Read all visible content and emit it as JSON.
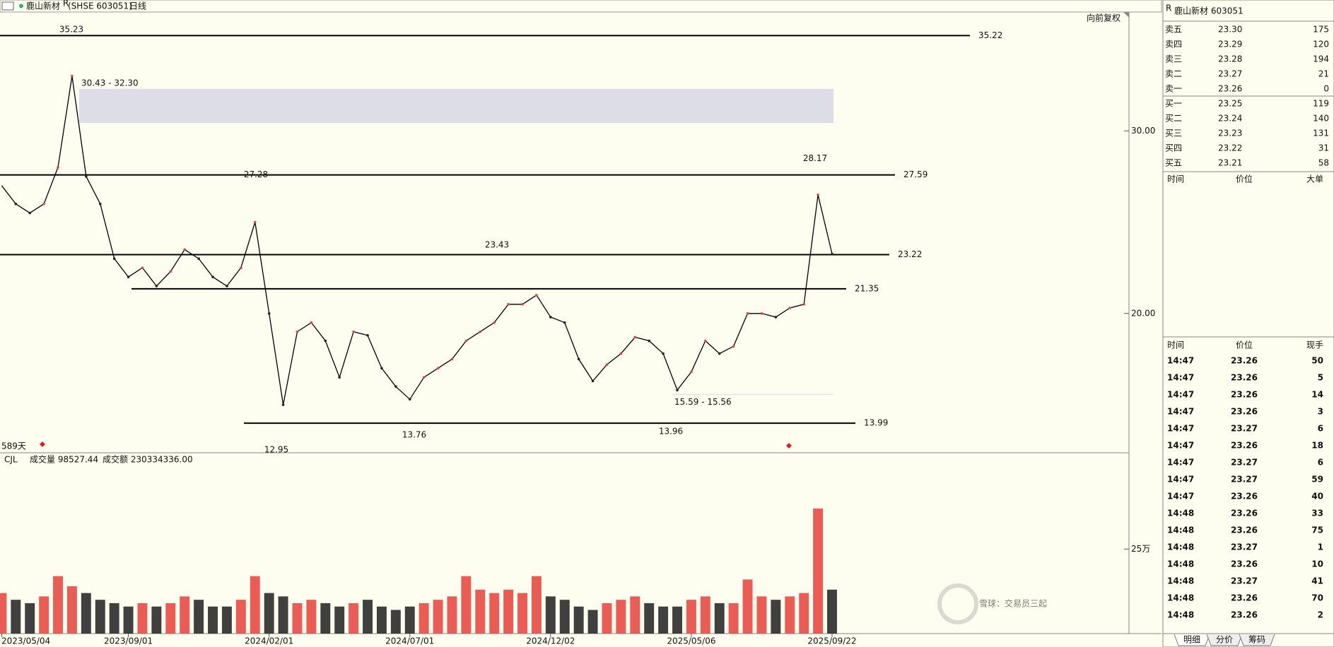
{
  "header": {
    "name": "鹿山新材",
    "mark": "R",
    "code": "(SHSE 603051)",
    "period": "日线",
    "adjust": "向前复权"
  },
  "chart_data": [
    {
      "type": "line",
      "color": "#000000",
      "categories": [
        "2023/05/04",
        null,
        null,
        null,
        null,
        null,
        null,
        null,
        null,
        "2023/09/01",
        null,
        null,
        null,
        null,
        null,
        null,
        null,
        null,
        null,
        "2024/02/01",
        null,
        null,
        null,
        null,
        null,
        null,
        null,
        null,
        null,
        "2024/07/01",
        null,
        null,
        null,
        null,
        null,
        null,
        null,
        null,
        null,
        "2024/12/02",
        null,
        null,
        null,
        null,
        null,
        null,
        null,
        null,
        null,
        "2025/05/06",
        null,
        null,
        null,
        null,
        null,
        null,
        null,
        null,
        null,
        "2025/09/22"
      ],
      "values": [
        27,
        26,
        25.5,
        26,
        28,
        33,
        27.5,
        26,
        23,
        22,
        22.5,
        21.5,
        22.3,
        23.5,
        23,
        22,
        21.5,
        22.5,
        25,
        20,
        15,
        19,
        19.5,
        18.5,
        16.5,
        19,
        18.8,
        17,
        16,
        15.3,
        16.5,
        17,
        17.5,
        18.5,
        19,
        19.5,
        20.5,
        20.5,
        21,
        19.8,
        19.5,
        17.5,
        16.3,
        17.2,
        17.8,
        18.7,
        18.5,
        17.8,
        15.8,
        16.8,
        18.5,
        17.8,
        18.2,
        20,
        20,
        19.8,
        20.3,
        20.5,
        26.5,
        23.26
      ],
      "ylim": [
        12.37,
        36.51
      ],
      "yticks": [
        {
          "value": 20,
          "label": "20.00"
        },
        {
          "value": 30,
          "label": "30.00"
        }
      ],
      "levels": [
        35.22,
        27.59,
        23.22,
        21.35,
        13.99
      ],
      "zones": [
        {
          "from": 30.43,
          "to": 32.3,
          "label": "30.43 - 32.30"
        },
        {
          "from": 15.59,
          "to": 15.56,
          "label": "15.59 - 15.56"
        }
      ],
      "highs": [
        35.23,
        27.28,
        23.43,
        28.17
      ],
      "lows": [
        12.95,
        13.76,
        13.96
      ],
      "days_label": "589天"
    },
    {
      "type": "bar",
      "indicator": "CJL",
      "volume_text": "成交量 98527.44",
      "amount_text": "成交额 230334336.00",
      "up_color": "#e8403a",
      "down_color": "#1f1f1f",
      "values": [
        12,
        10,
        9,
        11,
        17,
        14,
        12,
        10,
        9,
        8,
        9,
        8,
        9,
        11,
        10,
        8,
        8,
        10,
        17,
        12,
        11,
        9,
        10,
        9,
        8,
        9,
        10,
        8,
        7,
        8,
        9,
        10,
        11,
        17,
        13,
        12,
        13,
        12,
        17,
        11,
        10,
        8,
        7,
        9,
        10,
        11,
        9,
        8,
        8,
        10,
        11,
        9,
        9,
        16,
        11,
        10,
        11,
        12,
        37,
        13
      ],
      "ylim": [
        0,
        53.5
      ],
      "yticks": [
        {
          "value": 25,
          "label": "25万"
        }
      ]
    }
  ],
  "quote": {
    "mark": "R",
    "title": "鹿山新材  603051",
    "asks": [
      [
        "卖五",
        "23.30",
        "175"
      ],
      [
        "卖四",
        "23.29",
        "120"
      ],
      [
        "卖三",
        "23.28",
        "194"
      ],
      [
        "卖二",
        "23.27",
        "21"
      ],
      [
        "卖一",
        "23.26",
        "0"
      ]
    ],
    "bids": [
      [
        "买一",
        "23.25",
        "119"
      ],
      [
        "买二",
        "23.24",
        "140"
      ],
      [
        "买三",
        "23.23",
        "131"
      ],
      [
        "买四",
        "23.22",
        "31"
      ],
      [
        "买五",
        "23.21",
        "58"
      ]
    ],
    "big_header": [
      "时间",
      "价位",
      "大单"
    ],
    "trade_header": [
      "时间",
      "价位",
      "现手"
    ],
    "trades": [
      {
        "time": "14:47",
        "price": "23.26",
        "vol": "50",
        "price_color": "#1a8a1a",
        "vol_color": "#1a8a1a"
      },
      {
        "time": "14:47",
        "price": "23.26",
        "vol": "5",
        "price_color": "#1a8a1a",
        "vol_color": "#1a8a1a"
      },
      {
        "time": "14:47",
        "price": "23.26",
        "vol": "14",
        "price_color": "#1a8a1a",
        "vol_color": "#1a8a1a"
      },
      {
        "time": "14:47",
        "price": "23.26",
        "vol": "3",
        "price_color": "#1a8a1a",
        "vol_color": "#1a8a1a"
      },
      {
        "time": "14:47",
        "price": "23.27",
        "vol": "6",
        "price_color": "#1a8a1a",
        "vol_color": "#e02020"
      },
      {
        "time": "14:47",
        "price": "23.26",
        "vol": "18",
        "price_color": "#1a8a1a",
        "vol_color": "#1a8a1a"
      },
      {
        "time": "14:47",
        "price": "23.27",
        "vol": "6",
        "price_color": "#1a8a1a",
        "vol_color": "#e02020"
      },
      {
        "time": "14:47",
        "price": "23.27",
        "vol": "59",
        "price_color": "#1a8a1a",
        "vol_color": "#e02020"
      },
      {
        "time": "14:47",
        "price": "23.26",
        "vol": "40",
        "price_color": "#1a8a1a",
        "vol_color": "#1a8a1a"
      },
      {
        "time": "14:48",
        "price": "23.26",
        "vol": "33",
        "price_color": "#1a8a1a",
        "vol_color": "#e02020"
      },
      {
        "time": "14:48",
        "price": "23.26",
        "vol": "75",
        "price_color": "#1a8a1a",
        "vol_color": "#e02020"
      },
      {
        "time": "14:48",
        "price": "23.27",
        "vol": "1",
        "price_color": "#1a8a1a",
        "vol_color": "#e02020"
      },
      {
        "time": "14:48",
        "price": "23.26",
        "vol": "10",
        "price_color": "#1a8a1a",
        "vol_color": "#1a8a1a"
      },
      {
        "time": "14:48",
        "price": "23.27",
        "vol": "41",
        "price_color": "#1a8a1a",
        "vol_color": "#e02020"
      },
      {
        "time": "14:48",
        "price": "23.26",
        "vol": "70",
        "price_color": "#1a8a1a",
        "vol_color": "#1a8a1a"
      },
      {
        "time": "14:48",
        "price": "23.26",
        "vol": "2",
        "price_color": "#1a8a1a",
        "vol_color": "#1a8a1a"
      }
    ],
    "tabs": [
      "明细",
      "分价",
      "筹码"
    ]
  },
  "watermark": "雪球：交易员三起"
}
